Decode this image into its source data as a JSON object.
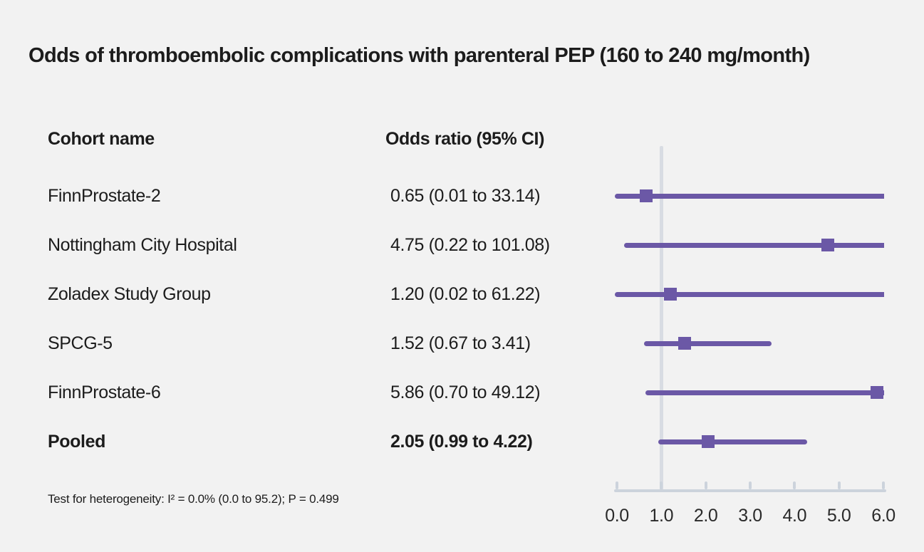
{
  "title": "Odds of thromboembolic complications with parenteral PEP (160 to 240 mg/month)",
  "columns": {
    "cohort": "Cohort name",
    "odds_ratio": "Odds ratio (95% CI)"
  },
  "rows": [
    {
      "name": "FinnProstate-2",
      "value": "0.65 (0.01 to 33.14)"
    },
    {
      "name": "Nottingham City Hospital",
      "value": "4.75 (0.22 to 101.08)"
    },
    {
      "name": "Zoladex Study Group",
      "value": "1.20 (0.02 to 61.22)"
    },
    {
      "name": "SPCG-5",
      "value": "1.52 (0.67 to 3.41)"
    },
    {
      "name": "FinnProstate-6",
      "value": "5.86 (0.70 to 49.12)"
    },
    {
      "name": "Pooled",
      "value": "2.05 (0.99 to 4.22)"
    }
  ],
  "footnote": "Test for heterogeneity: I² = 0.0% (0.0 to 95.2); P = 0.499",
  "chart_data": {
    "type": "forest",
    "title": "Odds of thromboembolic complications with parenteral PEP (160 to 240 mg/month)",
    "xlim": [
      0.0,
      6.0
    ],
    "reference_line": 1.0,
    "grid": false,
    "xticks": [
      {
        "value": 0.0,
        "label": "0.0"
      },
      {
        "value": 1.0,
        "label": "1.0"
      },
      {
        "value": 2.0,
        "label": "2.0"
      },
      {
        "value": 3.0,
        "label": "3.0"
      },
      {
        "value": 4.0,
        "label": "4.0"
      },
      {
        "value": 5.0,
        "label": "5.0"
      },
      {
        "value": 6.0,
        "label": "6.0"
      }
    ],
    "series": [
      {
        "name": "FinnProstate-2",
        "estimate": 0.65,
        "ci_low": 0.01,
        "ci_high": 33.14,
        "pooled": false
      },
      {
        "name": "Nottingham City Hospital",
        "estimate": 4.75,
        "ci_low": 0.22,
        "ci_high": 101.08,
        "pooled": false
      },
      {
        "name": "Zoladex Study Group",
        "estimate": 1.2,
        "ci_low": 0.02,
        "ci_high": 61.22,
        "pooled": false
      },
      {
        "name": "SPCG-5",
        "estimate": 1.52,
        "ci_low": 0.67,
        "ci_high": 3.41,
        "pooled": false
      },
      {
        "name": "FinnProstate-6",
        "estimate": 5.86,
        "ci_low": 0.7,
        "ci_high": 49.12,
        "pooled": false
      },
      {
        "name": "Pooled",
        "estimate": 2.05,
        "ci_low": 0.99,
        "ci_high": 4.22,
        "pooled": true
      }
    ],
    "colors": {
      "marker": "#6b58a6",
      "ci_line": "#6b58a6",
      "axis": "#ccd3dc",
      "reference_line": "#d8dce3",
      "background": "#f2f2f2",
      "text": "#1c1c1c"
    }
  }
}
